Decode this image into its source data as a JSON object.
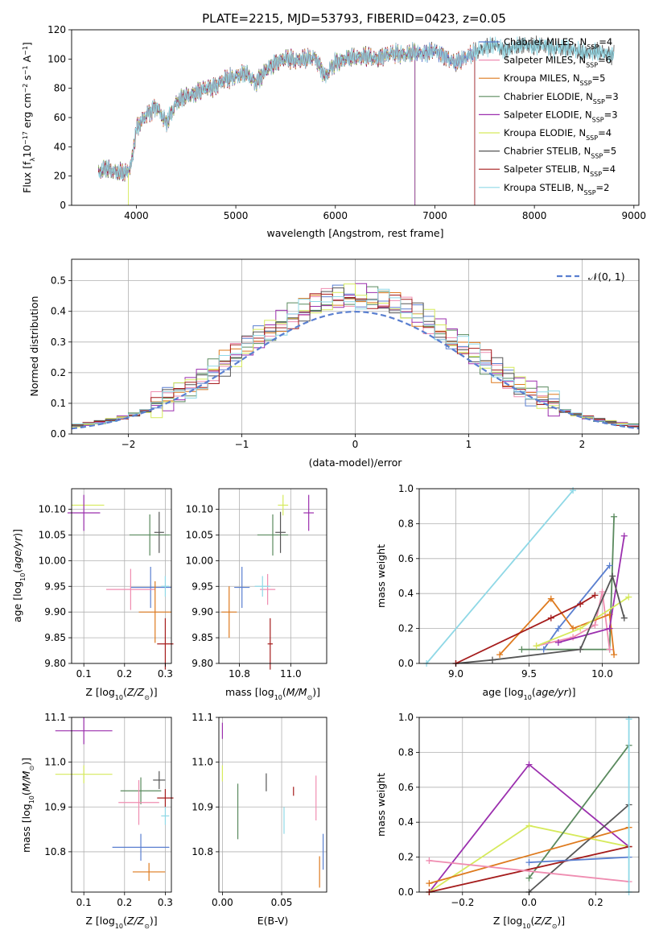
{
  "figure": {
    "title": "PLATE=2215, MJD=53793, FIBERID=0423, z=0.05"
  },
  "colors": {
    "Chabrier MILES": "#5a7fd0",
    "Salpeter MILES": "#ef8db1",
    "Kroupa MILES": "#de7a1e",
    "Chabrier ELODIE": "#5a8a5e",
    "Salpeter ELODIE": "#9b2fae",
    "Kroupa ELODIE": "#d6ea5c",
    "Chabrier STELIB": "#555555",
    "Salpeter STELIB": "#a51c1c",
    "Kroupa STELIB": "#8fd8e6"
  },
  "chart_data": [
    {
      "id": "spectrum",
      "type": "line",
      "title": "PLATE=2215, MJD=53793, FIBERID=0423, z=0.05",
      "xlabel": "wavelength [Angstrom, rest frame]",
      "ylabel": "Flux [f_λ10^-17 erg cm^-2 s^-1 A^-1]",
      "xlim": [
        3350,
        9050
      ],
      "ylim": [
        0,
        120
      ],
      "xticks": [
        4000,
        5000,
        6000,
        7000,
        8000,
        9000
      ],
      "yticks": [
        0,
        20,
        40,
        60,
        80,
        100,
        120
      ],
      "legend_position": "right",
      "legend": [
        {
          "label": "Chabrier MILES, N",
          "sub": "SSP",
          "suffix": "=4",
          "name": "Chabrier MILES"
        },
        {
          "label": "Salpeter MILES, N",
          "sub": "SSP",
          "suffix": "=6",
          "name": "Salpeter MILES"
        },
        {
          "label": "Kroupa MILES, N",
          "sub": "SSP",
          "suffix": "=5",
          "name": "Kroupa MILES"
        },
        {
          "label": "Chabrier ELODIE, N",
          "sub": "SSP",
          "suffix": "=3",
          "name": "Chabrier ELODIE"
        },
        {
          "label": "Salpeter ELODIE, N",
          "sub": "SSP",
          "suffix": "=3",
          "name": "Salpeter ELODIE"
        },
        {
          "label": "Kroupa ELODIE, N",
          "sub": "SSP",
          "suffix": "=4",
          "name": "Kroupa ELODIE"
        },
        {
          "label": "Chabrier STELIB, N",
          "sub": "SSP",
          "suffix": "=5",
          "name": "Chabrier STELIB"
        },
        {
          "label": "Salpeter STELIB, N",
          "sub": "SSP",
          "suffix": "=4",
          "name": "Salpeter STELIB"
        },
        {
          "label": "Kroupa STELIB, N",
          "sub": "SSP",
          "suffix": "=2",
          "name": "Kroupa STELIB"
        }
      ],
      "continuum": [
        [
          3620,
          22
        ],
        [
          3700,
          26
        ],
        [
          3800,
          22
        ],
        [
          3900,
          22
        ],
        [
          3950,
          28
        ],
        [
          4000,
          52
        ],
        [
          4100,
          62
        ],
        [
          4200,
          68
        ],
        [
          4300,
          56
        ],
        [
          4400,
          70
        ],
        [
          4500,
          74
        ],
        [
          4600,
          77
        ],
        [
          4700,
          80
        ],
        [
          4800,
          82
        ],
        [
          4900,
          86
        ],
        [
          5000,
          88
        ],
        [
          5100,
          90
        ],
        [
          5200,
          84
        ],
        [
          5300,
          92
        ],
        [
          5400,
          98
        ],
        [
          5500,
          100
        ],
        [
          5600,
          99
        ],
        [
          5700,
          100
        ],
        [
          5800,
          101
        ],
        [
          5900,
          88
        ],
        [
          6000,
          98
        ],
        [
          6100,
          100
        ],
        [
          6200,
          101
        ],
        [
          6300,
          102
        ],
        [
          6400,
          100
        ],
        [
          6500,
          103
        ],
        [
          6600,
          104
        ],
        [
          6700,
          103
        ],
        [
          6800,
          104
        ],
        [
          6900,
          104
        ],
        [
          7000,
          106
        ],
        [
          7100,
          102
        ],
        [
          7200,
          97
        ],
        [
          7300,
          101
        ],
        [
          7400,
          104
        ],
        [
          7500,
          108
        ],
        [
          7600,
          110
        ],
        [
          7700,
          106
        ],
        [
          7800,
          108
        ],
        [
          7900,
          110
        ],
        [
          8000,
          108
        ],
        [
          8100,
          110
        ],
        [
          8200,
          107
        ],
        [
          8300,
          108
        ],
        [
          8400,
          106
        ],
        [
          8500,
          104
        ],
        [
          8600,
          105
        ],
        [
          8700,
          104
        ],
        [
          8800,
          103
        ]
      ],
      "end_wavelength": {
        "Chabrier MILES": 7400,
        "Salpeter MILES": 7400,
        "Kroupa MILES": 7400,
        "Chabrier ELODIE": 6800,
        "Salpeter ELODIE": 6800,
        "Kroupa ELODIE": 6800,
        "Chabrier STELIB": 8800,
        "Salpeter STELIB": 7400,
        "Kroupa STELIB": 8800
      }
    },
    {
      "id": "residuals",
      "type": "line",
      "xlabel": "(data-model)/error",
      "ylabel": "Normed distribution",
      "xlim": [
        -2.5,
        2.5
      ],
      "ylim": [
        0,
        0.57
      ],
      "xticks": [
        -2,
        -1,
        0,
        1,
        2
      ],
      "yticks": [
        0.0,
        0.1,
        0.2,
        0.3,
        0.4,
        0.5
      ],
      "legend_label": "𝒩(0, 1)",
      "legend_position": "top-right",
      "bin_width": 0.1,
      "bin_start": -2.5
    },
    {
      "id": "age-vs-Z",
      "type": "scatter",
      "xlabel": "Z [log10(Z/Z⊙)]",
      "ylabel": "age  [log10(age/yr)]",
      "xlim": [
        0.07,
        0.315
      ],
      "ylim": [
        9.8,
        10.14
      ],
      "xticks": [
        0.1,
        0.2,
        0.3
      ],
      "yticks": [
        9.8,
        9.85,
        9.9,
        9.95,
        10.0,
        10.05,
        10.1
      ],
      "points": [
        {
          "name": "Kroupa ELODIE",
          "x": 0.11,
          "y": 10.108,
          "xerr": 0.04,
          "yerr": 0
        },
        {
          "name": "Salpeter ELODIE",
          "x": 0.1,
          "y": 10.093,
          "xerr": 0.04,
          "yerr": 0.035
        },
        {
          "name": "Chabrier ELODIE",
          "x": 0.262,
          "y": 10.05,
          "xerr": 0.05,
          "yerr": 0.04
        },
        {
          "name": "Chabrier STELIB",
          "x": 0.285,
          "y": 10.055,
          "xerr": 0.012,
          "yerr": 0.04
        },
        {
          "name": "Chabrier MILES",
          "x": 0.264,
          "y": 9.948,
          "xerr": 0.05,
          "yerr": 0.04
        },
        {
          "name": "Salpeter MILES",
          "x": 0.215,
          "y": 9.944,
          "xerr": 0.06,
          "yerr": 0.04
        },
        {
          "name": "Kroupa STELIB",
          "x": 0.3,
          "y": 9.95,
          "xerr": 0.01,
          "yerr": 0.02
        },
        {
          "name": "Kroupa MILES",
          "x": 0.275,
          "y": 9.9,
          "xerr": 0.04,
          "yerr": 0.06
        },
        {
          "name": "Salpeter STELIB",
          "x": 0.3,
          "y": 9.838,
          "xerr": 0.02,
          "yerr": 0.05
        }
      ]
    },
    {
      "id": "age-vs-mass",
      "type": "scatter",
      "xlabel": "mass [log10(M/M⊙)]",
      "xlim": [
        10.72,
        11.14
      ],
      "ylim": [
        9.8,
        10.14
      ],
      "xticks": [
        10.8,
        11.0
      ],
      "yticks": [
        9.8,
        9.85,
        9.9,
        9.95,
        10.0,
        10.05,
        10.1
      ],
      "points": [
        {
          "name": "Kroupa ELODIE",
          "x": 10.97,
          "y": 10.108,
          "xerr": 0.02,
          "yerr": 0.02
        },
        {
          "name": "Salpeter ELODIE",
          "x": 11.07,
          "y": 10.093,
          "xerr": 0.02,
          "yerr": 0.035
        },
        {
          "name": "Chabrier ELODIE",
          "x": 10.93,
          "y": 10.05,
          "xerr": 0.06,
          "yerr": 0.04
        },
        {
          "name": "Chabrier STELIB",
          "x": 10.96,
          "y": 10.055,
          "xerr": 0.02,
          "yerr": 0.04
        },
        {
          "name": "Chabrier MILES",
          "x": 10.81,
          "y": 9.948,
          "xerr": 0.03,
          "yerr": 0.04
        },
        {
          "name": "Salpeter MILES",
          "x": 10.91,
          "y": 9.944,
          "xerr": 0.03,
          "yerr": 0.03
        },
        {
          "name": "Kroupa STELIB",
          "x": 10.89,
          "y": 9.95,
          "xerr": 0.03,
          "yerr": 0.02
        },
        {
          "name": "Kroupa MILES",
          "x": 10.76,
          "y": 9.9,
          "xerr": 0.03,
          "yerr": 0.05
        },
        {
          "name": "Salpeter STELIB",
          "x": 10.92,
          "y": 9.838,
          "xerr": 0.01,
          "yerr": 0.05
        }
      ]
    },
    {
      "id": "mass-weight-vs-age",
      "type": "line",
      "xlabel": "age  [log10(age/yr)]",
      "ylabel": "mass weight",
      "xlim": [
        8.75,
        10.25
      ],
      "ylim": [
        0,
        1
      ],
      "xticks": [
        9.0,
        9.5,
        10.0
      ],
      "yticks": [
        0.0,
        0.2,
        0.4,
        0.6,
        0.8,
        1.0
      ],
      "series": [
        {
          "name": "Kroupa STELIB",
          "x": [
            8.8,
            9.8
          ],
          "y": [
            0.0,
            0.99
          ]
        },
        {
          "name": "Chabrier ELODIE",
          "x": [
            9.45,
            10.05,
            10.08
          ],
          "y": [
            0.08,
            0.08,
            0.84
          ]
        },
        {
          "name": "Chabrier MILES",
          "x": [
            9.6,
            9.7,
            10.05
          ],
          "y": [
            0.08,
            0.2,
            0.56
          ]
        },
        {
          "name": "Salpeter MILES",
          "x": [
            9.55,
            9.8,
            9.95,
            10.0,
            10.05
          ],
          "y": [
            0.1,
            0.15,
            0.22,
            0.41,
            0.08
          ]
        },
        {
          "name": "Kroupa MILES",
          "x": [
            9.3,
            9.65,
            9.8,
            10.05,
            10.08
          ],
          "y": [
            0.05,
            0.37,
            0.2,
            0.28,
            0.05
          ]
        },
        {
          "name": "Salpeter ELODIE",
          "x": [
            9.7,
            10.05,
            10.15
          ],
          "y": [
            0.12,
            0.2,
            0.73
          ]
        },
        {
          "name": "Kroupa ELODIE",
          "x": [
            9.55,
            9.85,
            10.18
          ],
          "y": [
            0.1,
            0.2,
            0.38
          ]
        },
        {
          "name": "Chabrier STELIB",
          "x": [
            9.0,
            9.25,
            9.85,
            10.07,
            10.15
          ],
          "y": [
            0.0,
            0.02,
            0.08,
            0.5,
            0.26
          ]
        },
        {
          "name": "Salpeter STELIB",
          "x": [
            9.0,
            9.65,
            9.85,
            9.95
          ],
          "y": [
            0.0,
            0.26,
            0.34,
            0.39
          ]
        }
      ]
    },
    {
      "id": "mass-vs-Z",
      "type": "scatter",
      "xlabel": "Z [log10(Z/Z⊙)]",
      "ylabel": "mass [log10(M/M⊙)]",
      "xlim": [
        0.07,
        0.315
      ],
      "ylim": [
        10.71,
        11.1
      ],
      "xticks": [
        0.1,
        0.2,
        0.3
      ],
      "yticks": [
        10.8,
        10.9,
        11.0,
        11.1
      ],
      "points": [
        {
          "name": "Salpeter ELODIE",
          "x": 0.1,
          "y": 11.07,
          "xerr": 0.07,
          "yerr": 0.03
        },
        {
          "name": "Kroupa ELODIE",
          "x": 0.1,
          "y": 10.973,
          "xerr": 0.07,
          "yerr": 0.02
        },
        {
          "name": "Chabrier ELODIE",
          "x": 0.24,
          "y": 10.936,
          "xerr": 0.05,
          "yerr": 0.03
        },
        {
          "name": "Chabrier STELIB",
          "x": 0.285,
          "y": 10.96,
          "xerr": 0.015,
          "yerr": 0.02
        },
        {
          "name": "Salpeter MILES",
          "x": 0.235,
          "y": 10.91,
          "xerr": 0.05,
          "yerr": 0.05
        },
        {
          "name": "Salpeter STELIB",
          "x": 0.3,
          "y": 10.92,
          "xerr": 0.02,
          "yerr": 0.02
        },
        {
          "name": "Kroupa STELIB",
          "x": 0.3,
          "y": 10.88,
          "xerr": 0.01,
          "yerr": 0.02
        },
        {
          "name": "Chabrier MILES",
          "x": 0.24,
          "y": 10.81,
          "xerr": 0.07,
          "yerr": 0.03
        },
        {
          "name": "Kroupa MILES",
          "x": 0.26,
          "y": 10.755,
          "xerr": 0.04,
          "yerr": 0.02
        }
      ]
    },
    {
      "id": "mass-vs-EBV",
      "type": "scatter",
      "xlabel": "E(B-V)",
      "xlim": [
        -0.003,
        0.088
      ],
      "ylim": [
        10.71,
        11.1
      ],
      "xticks": [
        0.0,
        0.05
      ],
      "yticks": [
        10.8,
        10.9,
        11.0,
        11.1
      ],
      "points": [
        {
          "name": "Salpeter ELODIE",
          "x": 0.0,
          "y": 11.07,
          "yerr": 0.018
        },
        {
          "name": "Kroupa ELODIE",
          "x": 0.0,
          "y": 10.975,
          "yerr": 0.018
        },
        {
          "name": "Chabrier ELODIE",
          "x": 0.013,
          "y": 10.89,
          "yerr": 0.062
        },
        {
          "name": "Chabrier STELIB",
          "x": 0.037,
          "y": 10.955,
          "yerr": 0.02
        },
        {
          "name": "Salpeter STELIB",
          "x": 0.06,
          "y": 10.935,
          "yerr": 0.01
        },
        {
          "name": "Salpeter MILES",
          "x": 0.079,
          "y": 10.92,
          "yerr": 0.05
        },
        {
          "name": "Kroupa STELIB",
          "x": 0.052,
          "y": 10.87,
          "yerr": 0.03
        },
        {
          "name": "Chabrier MILES",
          "x": 0.085,
          "y": 10.8,
          "yerr": 0.04
        },
        {
          "name": "Kroupa MILES",
          "x": 0.082,
          "y": 10.755,
          "yerr": 0.035
        }
      ]
    },
    {
      "id": "mass-weight-vs-Z",
      "type": "line",
      "xlabel": "Z [log10(Z/Z⊙)]",
      "ylabel": "mass weight",
      "xlim": [
        -0.33,
        0.33
      ],
      "ylim": [
        0,
        1
      ],
      "xticks": [
        -0.2,
        0.0,
        0.2
      ],
      "yticks": [
        0.0,
        0.2,
        0.4,
        0.6,
        0.8,
        1.0
      ],
      "series": [
        {
          "name": "Salpeter ELODIE",
          "x": [
            -0.3,
            0.0,
            0.3
          ],
          "y": [
            0.0,
            0.73,
            0.26
          ]
        },
        {
          "name": "Kroupa ELODIE",
          "x": [
            -0.3,
            0.0,
            0.3
          ],
          "y": [
            0.0,
            0.38,
            0.26
          ]
        },
        {
          "name": "Chabrier ELODIE",
          "x": [
            0.0,
            0.3
          ],
          "y": [
            0.08,
            0.84
          ]
        },
        {
          "name": "Chabrier STELIB",
          "x": [
            0.0,
            0.3
          ],
          "y": [
            0.0,
            0.5
          ]
        },
        {
          "name": "Kroupa MILES",
          "x": [
            -0.3,
            0.3
          ],
          "y": [
            0.05,
            0.37
          ]
        },
        {
          "name": "Salpeter STELIB",
          "x": [
            -0.3,
            0.3
          ],
          "y": [
            0.0,
            0.26
          ]
        },
        {
          "name": "Chabrier MILES",
          "x": [
            0.0,
            0.3
          ],
          "y": [
            0.17,
            0.2
          ]
        },
        {
          "name": "Salpeter MILES",
          "x": [
            -0.3,
            0.3
          ],
          "y": [
            0.18,
            0.06
          ]
        },
        {
          "name": "Kroupa STELIB",
          "x": [
            0.3,
            0.3
          ],
          "y": [
            0.0,
            0.99
          ]
        }
      ]
    }
  ]
}
